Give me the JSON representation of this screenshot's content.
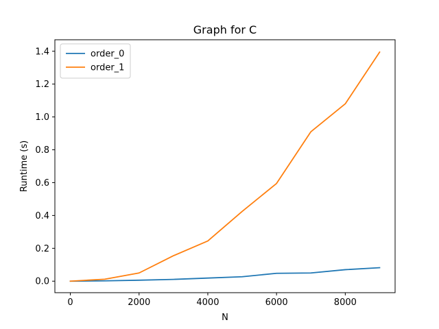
{
  "chart_data": {
    "type": "line",
    "title": "Graph for C",
    "xlabel": "N",
    "ylabel": "Runtime (s)",
    "xlim": [
      -450,
      9450
    ],
    "ylim": [
      -0.07,
      1.47
    ],
    "xticks": [
      0,
      2000,
      4000,
      6000,
      8000
    ],
    "xtick_labels": [
      "0",
      "2000",
      "4000",
      "6000",
      "8000"
    ],
    "yticks": [
      0.0,
      0.2,
      0.4,
      0.6,
      0.8,
      1.0,
      1.2,
      1.4
    ],
    "ytick_labels": [
      "0.0",
      "0.2",
      "0.4",
      "0.6",
      "0.8",
      "1.0",
      "1.2",
      "1.4"
    ],
    "grid": false,
    "legend_position": "upper-left",
    "x": [
      0,
      1000,
      2000,
      3000,
      4000,
      5000,
      6000,
      7000,
      8000,
      9000
    ],
    "series": [
      {
        "name": "order_0",
        "color": "#1f77b4",
        "values": [
          0.0,
          0.002,
          0.006,
          0.011,
          0.019,
          0.027,
          0.048,
          0.05,
          0.07,
          0.082
        ]
      },
      {
        "name": "order_1",
        "color": "#ff7f0e",
        "values": [
          0.0,
          0.012,
          0.05,
          0.155,
          0.245,
          0.425,
          0.595,
          0.91,
          1.08,
          1.395
        ]
      }
    ]
  }
}
